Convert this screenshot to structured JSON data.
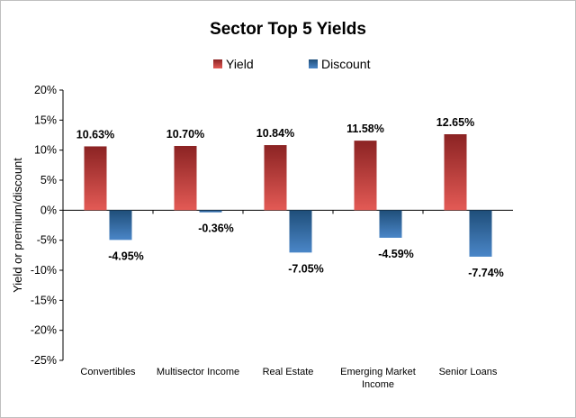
{
  "chart_data": {
    "type": "bar",
    "title": "Sector Top 5 Yields",
    "xlabel": "",
    "ylabel": "Yield or premium/discount",
    "ylim": [
      -25,
      20
    ],
    "ytick_step": 5,
    "ytick_suffix": "%",
    "legend_position": "top",
    "grid": false,
    "categories": [
      [
        "Convertibles"
      ],
      [
        "Multisector Income"
      ],
      [
        "Real Estate"
      ],
      [
        "Emerging Market",
        "Income"
      ],
      [
        "Senior Loans"
      ]
    ],
    "series": [
      {
        "name": "Yield",
        "color_top": "#8b2323",
        "color_bottom": "#e35a55",
        "values": [
          10.63,
          10.7,
          10.84,
          11.58,
          12.65
        ],
        "labels": [
          "10.63%",
          "10.70%",
          "10.84%",
          "11.58%",
          "12.65%"
        ]
      },
      {
        "name": "Discount",
        "color_top": "#1f4e79",
        "color_bottom": "#4a86c8",
        "values": [
          -4.95,
          -0.36,
          -7.05,
          -4.59,
          -7.74
        ],
        "labels": [
          "-4.95%",
          "-0.36%",
          "-7.05%",
          "-4.59%",
          "-7.74%"
        ]
      }
    ]
  }
}
